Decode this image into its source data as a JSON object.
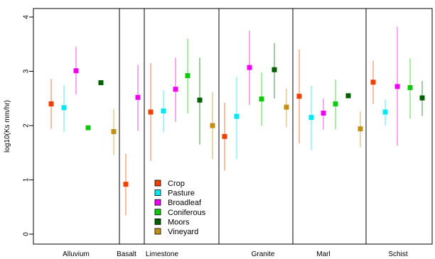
{
  "chart_data": {
    "type": "scatter",
    "ylabel": "log10(Ks mm/hr)",
    "xlabel": "",
    "ylim": [
      0,
      4
    ],
    "yticks": [
      0,
      1,
      2,
      3,
      4
    ],
    "grid": false,
    "legend_position": "bottom-left",
    "categories": [
      "Alluvium",
      "Basalt",
      "Limestone",
      "Granite",
      "Marl",
      "Schist"
    ],
    "series": [
      {
        "name": "Crop",
        "color": "#f04000",
        "values": [
          2.4,
          0.92,
          2.25,
          1.8,
          2.54,
          2.8
        ],
        "lower": [
          1.94,
          0.35,
          1.35,
          1.17,
          1.67,
          2.4
        ],
        "upper": [
          2.86,
          1.48,
          3.15,
          2.42,
          3.4,
          3.2
        ]
      },
      {
        "name": "Pasture",
        "color": "#00e8f0",
        "values": [
          2.33,
          null,
          2.27,
          2.17,
          2.15,
          2.25
        ],
        "lower": [
          1.88,
          null,
          1.88,
          1.38,
          1.55,
          2.0
        ],
        "upper": [
          2.75,
          null,
          2.65,
          2.9,
          2.73,
          2.48
        ]
      },
      {
        "name": "Broadleaf",
        "color": "#f000f0",
        "values": [
          3.01,
          2.52,
          2.67,
          3.07,
          2.23,
          2.72
        ],
        "lower": [
          2.57,
          1.9,
          2.07,
          2.38,
          1.93,
          1.63
        ],
        "upper": [
          3.45,
          3.12,
          3.25,
          3.75,
          2.5,
          3.82
        ]
      },
      {
        "name": "Coniferous",
        "color": "#10c810",
        "values": [
          1.96,
          null,
          2.92,
          2.49,
          2.4,
          2.7
        ],
        "lower": [
          null,
          null,
          2.22,
          1.99,
          1.93,
          2.13
        ],
        "upper": [
          null,
          null,
          3.6,
          2.98,
          2.85,
          3.24
        ]
      },
      {
        "name": "Moors",
        "color": "#006000",
        "values": [
          2.79,
          null,
          2.47,
          3.03,
          2.55,
          2.51
        ],
        "lower": [
          null,
          null,
          1.65,
          2.5,
          null,
          2.18
        ],
        "upper": [
          null,
          null,
          3.25,
          3.52,
          null,
          2.82
        ]
      },
      {
        "name": "Vineyard",
        "color": "#c09018",
        "values": [
          1.89,
          null,
          2.0,
          2.34,
          1.94,
          null
        ],
        "lower": [
          1.46,
          null,
          1.38,
          1.97,
          1.6,
          null
        ],
        "upper": [
          2.3,
          null,
          2.62,
          2.68,
          2.26,
          null
        ]
      }
    ]
  }
}
